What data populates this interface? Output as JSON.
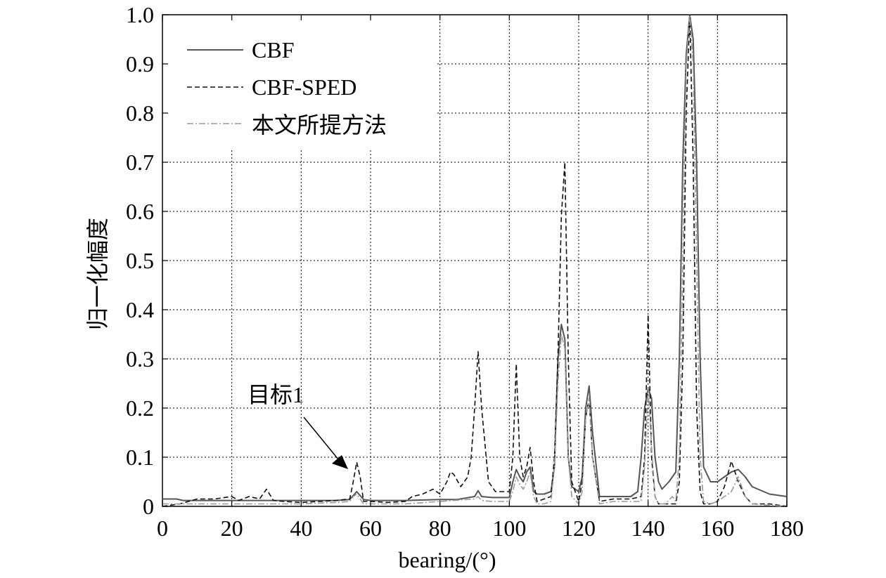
{
  "chart_data": {
    "type": "line",
    "title": "",
    "xlabel": "bearing/(°)",
    "ylabel": "归一化幅度",
    "xlim": [
      0,
      180
    ],
    "ylim": [
      0,
      1
    ],
    "xticks": [
      "0",
      "20",
      "40",
      "60",
      "80",
      "100",
      "120",
      "140",
      "160",
      "180"
    ],
    "yticks": [
      "0",
      "0.1",
      "0.2",
      "0.3",
      "0.4",
      "0.5",
      "0.6",
      "0.7",
      "0.8",
      "0.9",
      "1.0"
    ],
    "grid": true,
    "legend_position": "top-left",
    "annotation": {
      "text": "目标1",
      "target_x": 56,
      "target_y": 0.08
    },
    "series": [
      {
        "name": "CBF",
        "color": "#555555",
        "style": "solid",
        "x": [
          0,
          4,
          6,
          10,
          20,
          30,
          40,
          50,
          54,
          56,
          58,
          60,
          70,
          80,
          85,
          90,
          91,
          92,
          95,
          100,
          101,
          102,
          103,
          104,
          105,
          106,
          107,
          108,
          110,
          112,
          113,
          114,
          115,
          116,
          117,
          118,
          120,
          121,
          122,
          123,
          124,
          126,
          130,
          135,
          137,
          138,
          139,
          140,
          141,
          142,
          143,
          144,
          146,
          148,
          149,
          150,
          151,
          152,
          153,
          154,
          155,
          156,
          158,
          160,
          162,
          164,
          166,
          168,
          170,
          175,
          180
        ],
        "y": [
          0.015,
          0.015,
          0.012,
          0.012,
          0.012,
          0.012,
          0.012,
          0.012,
          0.014,
          0.03,
          0.014,
          0.012,
          0.012,
          0.014,
          0.014,
          0.02,
          0.032,
          0.02,
          0.018,
          0.018,
          0.05,
          0.075,
          0.06,
          0.05,
          0.07,
          0.08,
          0.03,
          0.025,
          0.025,
          0.03,
          0.08,
          0.3,
          0.37,
          0.34,
          0.1,
          0.04,
          0.03,
          0.06,
          0.2,
          0.245,
          0.15,
          0.02,
          0.02,
          0.02,
          0.03,
          0.1,
          0.2,
          0.24,
          0.22,
          0.1,
          0.05,
          0.035,
          0.05,
          0.07,
          0.3,
          0.7,
          0.92,
          1.0,
          0.95,
          0.7,
          0.3,
          0.08,
          0.05,
          0.05,
          0.06,
          0.07,
          0.075,
          0.06,
          0.04,
          0.025,
          0.02
        ]
      },
      {
        "name": "CBF-SPED",
        "color": "#111111",
        "style": "dashed",
        "x": [
          0,
          5,
          10,
          15,
          20,
          22,
          25,
          28,
          30,
          32,
          35,
          40,
          45,
          50,
          54,
          55,
          56,
          57,
          58,
          60,
          65,
          70,
          72,
          75,
          78,
          80,
          82,
          83,
          84,
          86,
          88,
          89,
          90,
          91,
          92,
          94,
          96,
          98,
          100,
          101,
          102,
          103,
          104,
          105,
          106,
          107,
          108,
          110,
          112,
          113,
          114,
          115,
          116,
          117,
          118,
          120,
          121,
          122,
          123,
          124,
          126,
          130,
          135,
          138,
          139,
          140,
          141,
          142,
          143,
          145,
          148,
          149,
          150,
          151,
          152,
          153,
          154,
          155,
          156,
          158,
          160,
          162,
          164,
          166,
          168,
          170,
          175,
          180
        ],
        "y": [
          0,
          0.005,
          0.015,
          0.015,
          0.02,
          0.012,
          0.02,
          0.015,
          0.035,
          0.012,
          0.01,
          0.008,
          0.01,
          0.012,
          0.015,
          0.05,
          0.09,
          0.06,
          0.01,
          0.01,
          0.008,
          0.01,
          0.02,
          0.025,
          0.035,
          0.025,
          0.05,
          0.07,
          0.065,
          0.04,
          0.06,
          0.1,
          0.2,
          0.315,
          0.2,
          0.05,
          0.03,
          0.03,
          0.03,
          0.1,
          0.29,
          0.1,
          0.06,
          0.08,
          0.12,
          0.05,
          0.01,
          0.015,
          0.02,
          0.1,
          0.3,
          0.59,
          0.7,
          0.3,
          0.05,
          0.01,
          0.05,
          0.18,
          0.22,
          0.1,
          0.01,
          0.015,
          0.015,
          0.02,
          0.1,
          0.39,
          0.1,
          0.02,
          0.005,
          0.005,
          0.005,
          0.05,
          0.3,
          0.8,
          1.0,
          0.7,
          0.2,
          0.03,
          0.005,
          0.005,
          0.01,
          0.04,
          0.092,
          0.05,
          0.02,
          0.005,
          0.005,
          0
        ]
      },
      {
        "name": "本文所提方法",
        "color": "#999999",
        "style": "dashdot",
        "x": [
          0,
          10,
          20,
          30,
          40,
          50,
          54,
          55,
          56,
          57,
          58,
          60,
          70,
          80,
          90,
          91,
          92,
          95,
          100,
          101,
          102,
          103,
          104,
          105,
          106,
          107,
          108,
          110,
          112,
          113,
          114,
          115,
          116,
          117,
          118,
          120,
          121,
          122,
          123,
          124,
          126,
          130,
          135,
          138,
          139,
          140,
          141,
          142,
          143,
          145,
          147,
          148,
          149,
          150,
          151,
          152,
          153,
          154,
          155,
          156,
          158,
          160,
          162,
          164,
          166,
          168,
          170,
          175,
          180
        ],
        "y": [
          0.005,
          0.005,
          0.005,
          0.005,
          0.005,
          0.008,
          0.01,
          0.02,
          0.025,
          0.015,
          0.005,
          0.005,
          0.005,
          0.01,
          0.015,
          0.02,
          0.012,
          0.01,
          0.01,
          0.03,
          0.06,
          0.045,
          0.035,
          0.05,
          0.07,
          0.02,
          0.005,
          0.005,
          0.01,
          0.08,
          0.25,
          0.35,
          0.32,
          0.1,
          0.02,
          0.005,
          0.03,
          0.18,
          0.22,
          0.1,
          0.005,
          0.01,
          0.01,
          0.01,
          0.08,
          0.24,
          0.12,
          0.02,
          0.005,
          0.005,
          0.02,
          0.01,
          0.1,
          0.5,
          0.9,
          1.0,
          0.9,
          0.5,
          0.1,
          0.01,
          0.005,
          0.01,
          0.02,
          0.03,
          0.06,
          0.02,
          0.005,
          0.002,
          0
        ]
      }
    ]
  }
}
